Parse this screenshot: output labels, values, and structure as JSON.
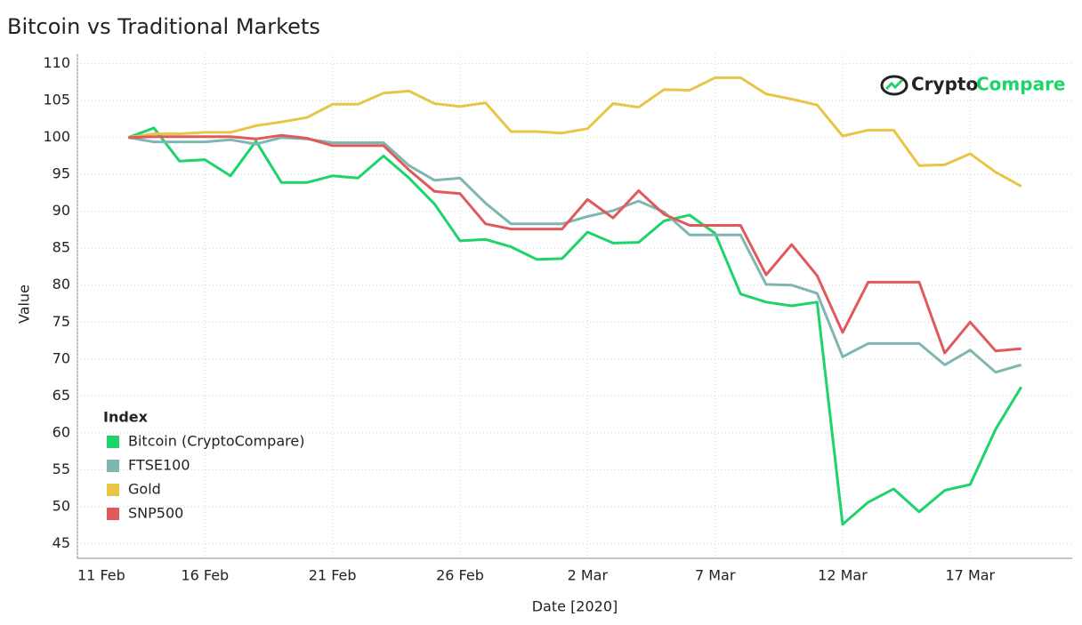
{
  "chart_data": {
    "type": "line",
    "title": "Bitcoin vs Traditional Markets",
    "xlabel": "Date [2020]",
    "ylabel": "Value",
    "logo": [
      "Crypto",
      "Compare"
    ],
    "legend_title": "Index",
    "legend": "lower left",
    "grid": true,
    "x": [
      "13 Feb",
      "14 Feb",
      "15 Feb",
      "16 Feb",
      "17 Feb",
      "18 Feb",
      "19 Feb",
      "20 Feb",
      "21 Feb",
      "22 Feb",
      "23 Feb",
      "24 Feb",
      "25 Feb",
      "26 Feb",
      "27 Feb",
      "28 Feb",
      "29 Feb",
      "1 Mar",
      "2 Mar",
      "3 Mar",
      "4 Mar",
      "5 Mar",
      "6 Mar",
      "7 Mar",
      "8 Mar",
      "9 Mar",
      "10 Mar",
      "11 Mar",
      "12 Mar",
      "13 Mar",
      "14 Mar",
      "15 Mar",
      "16 Mar",
      "17 Mar",
      "18 Mar",
      "19 Mar"
    ],
    "xlim": [
      "11 Feb",
      "21 Mar"
    ],
    "xticks": [
      "11 Feb",
      "16 Feb",
      "21 Feb",
      "26 Feb",
      "2 Mar",
      "7 Mar",
      "12 Mar",
      "17 Mar"
    ],
    "ylim": [
      43,
      111.4
    ],
    "yticks": [
      45,
      50,
      55,
      60,
      65,
      70,
      75,
      80,
      85,
      90,
      95,
      100,
      105,
      110
    ],
    "series": [
      {
        "name": "Bitcoin (CryptoCompare)",
        "color": "#1dd46b",
        "values": [
          100,
          101.3,
          96.8,
          97.0,
          94.8,
          99.5,
          93.9,
          93.9,
          94.8,
          94.5,
          97.5,
          94.5,
          91.0,
          86.0,
          86.2,
          85.2,
          83.5,
          83.6,
          87.2,
          85.7,
          85.8,
          88.7,
          89.5,
          87.0,
          78.8,
          77.7,
          77.2,
          77.7,
          47.6,
          50.6,
          52.4,
          49.3,
          52.2,
          53.0,
          60.5,
          66.2
        ]
      },
      {
        "name": "FTSE100",
        "color": "#7fb6b1",
        "values": [
          100,
          99.4,
          99.4,
          99.4,
          99.7,
          99.1,
          100.0,
          99.8,
          99.3,
          99.3,
          99.3,
          96.2,
          94.2,
          94.5,
          91.1,
          88.3,
          88.3,
          88.3,
          89.3,
          90.1,
          91.4,
          89.9,
          86.8,
          86.8,
          86.8,
          80.1,
          80.0,
          78.9,
          70.3,
          72.1,
          72.1,
          72.1,
          69.2,
          71.2,
          68.2,
          69.2
        ]
      },
      {
        "name": "Gold",
        "color": "#e9c547",
        "values": [
          100,
          100.5,
          100.5,
          100.7,
          100.7,
          101.6,
          102.1,
          102.7,
          104.5,
          104.5,
          106.0,
          106.3,
          104.6,
          104.2,
          104.7,
          100.8,
          100.8,
          100.6,
          101.2,
          104.6,
          104.1,
          106.5,
          106.4,
          108.1,
          108.1,
          105.9,
          105.2,
          104.4,
          100.2,
          101.0,
          101.0,
          96.2,
          96.3,
          97.8,
          95.3,
          93.4
        ]
      },
      {
        "name": "SNP500",
        "color": "#e05a5c",
        "values": [
          100,
          100.1,
          100.1,
          100.1,
          100.1,
          99.8,
          100.3,
          99.9,
          98.9,
          98.9,
          98.9,
          95.6,
          92.7,
          92.4,
          88.3,
          87.6,
          87.6,
          87.6,
          91.6,
          89.1,
          92.8,
          89.6,
          88.1,
          88.1,
          88.1,
          81.4,
          85.5,
          81.3,
          73.6,
          80.4,
          80.4,
          80.4,
          70.8,
          75.0,
          71.1,
          71.4
        ]
      }
    ]
  }
}
